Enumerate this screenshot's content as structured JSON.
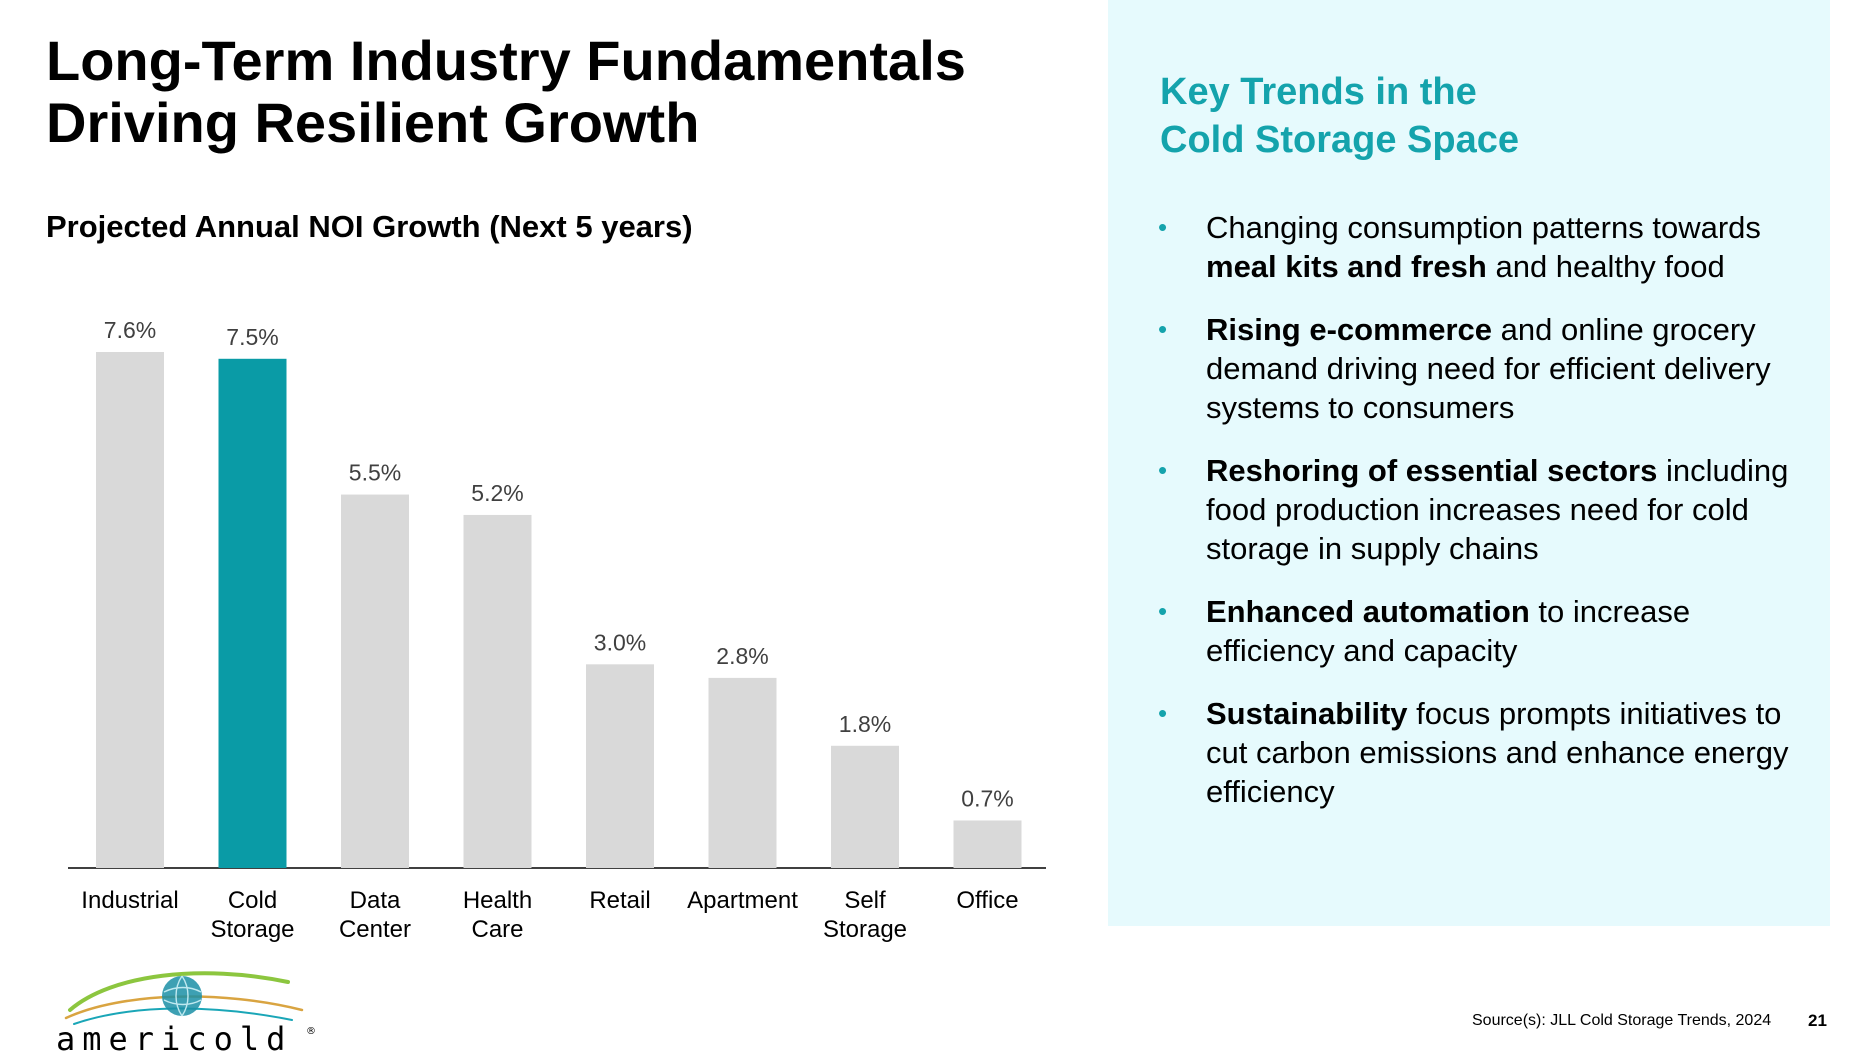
{
  "slide": {
    "title_line1": "Long-Term Industry Fundamentals",
    "title_line2": "Driving Resilient Growth",
    "source": "Source(s): JLL Cold Storage Trends, 2024",
    "page_number": "21"
  },
  "chart_data": {
    "type": "bar",
    "title": "Projected Annual NOI Growth (Next 5 years)",
    "categories": [
      "Industrial",
      "Cold Storage",
      "Data Center",
      "Health Care",
      "Retail",
      "Apartment",
      "Self Storage",
      "Office"
    ],
    "category_lines": [
      [
        "Industrial"
      ],
      [
        "Cold",
        "Storage"
      ],
      [
        "Data",
        "Center"
      ],
      [
        "Health",
        "Care"
      ],
      [
        "Retail"
      ],
      [
        "Apartment"
      ],
      [
        "Self",
        "Storage"
      ],
      [
        "Office"
      ]
    ],
    "values": [
      7.6,
      7.5,
      5.5,
      5.2,
      3.0,
      2.8,
      1.8,
      0.7
    ],
    "value_labels": [
      "7.6%",
      "7.5%",
      "5.5%",
      "5.2%",
      "3.0%",
      "2.8%",
      "1.8%",
      "0.7%"
    ],
    "unit": "%",
    "highlight_index": 1,
    "colors": {
      "default": "#d9d9d9",
      "highlight": "#0a9ba6"
    },
    "ylim": [
      0,
      7.6
    ],
    "grid": false,
    "legend": "none"
  },
  "panel": {
    "title_line1": "Key Trends in the",
    "title_line2": "Cold Storage Space",
    "accent_color": "#14a3ac",
    "background": "#e6fafd",
    "bullet_glyph": "•",
    "trends": [
      {
        "bold": "",
        "text": "Changing consumption patterns towards",
        "bold2": "meal kits and fresh",
        "text2": " and healthy food"
      },
      {
        "bold": "Rising e-commerce",
        "text": " and online grocery demand driving need for efficient delivery systems to consumers",
        "bold2": "",
        "text2": ""
      },
      {
        "bold": "Reshoring of essential sectors",
        "text": " including food production increases need for cold storage in supply chains",
        "bold2": "",
        "text2": ""
      },
      {
        "bold": "Enhanced automation",
        "text": " to increase efficiency and capacity",
        "bold2": "",
        "text2": ""
      },
      {
        "bold": "Sustainability",
        "text": " focus prompts initiatives to cut carbon emissions and enhance energy efficiency",
        "bold2": "",
        "text2": ""
      }
    ]
  },
  "logo": {
    "wordmark": "americold",
    "registered": "®"
  }
}
